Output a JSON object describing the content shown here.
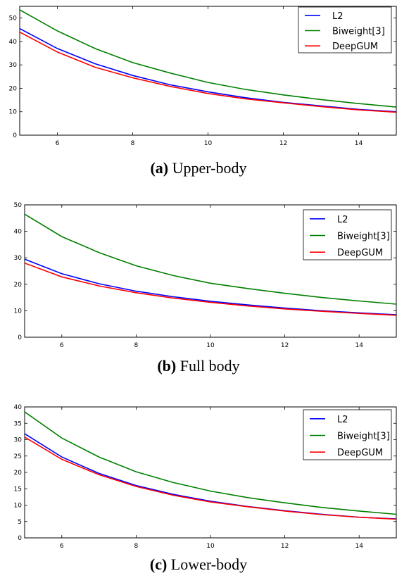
{
  "chart_data": [
    {
      "type": "line",
      "caption_label": "(a)",
      "caption_text": " Upper-body",
      "x": [
        5,
        6,
        7,
        8,
        9,
        10,
        11,
        12,
        13,
        14,
        15
      ],
      "xlim": [
        5,
        15
      ],
      "xticks": [
        6,
        8,
        10,
        12,
        14
      ],
      "ylim": [
        0,
        55
      ],
      "yticks": [
        0,
        10,
        20,
        30,
        40,
        50
      ],
      "legend_position": "top-right",
      "series": [
        {
          "name": "L2",
          "color": "#0000ff",
          "values": [
            45.5,
            37,
            30.5,
            25.5,
            21.5,
            18.5,
            16,
            14,
            12.5,
            11,
            10
          ]
        },
        {
          "name": "Biweight[3]",
          "color": "#008000",
          "values": [
            53.5,
            44.5,
            37,
            31,
            26.5,
            22.5,
            19.5,
            17.2,
            15.2,
            13.5,
            12
          ]
        },
        {
          "name": "DeepGUM",
          "color": "#ff0000",
          "values": [
            44,
            35.5,
            29,
            24.5,
            20.8,
            17.8,
            15.5,
            13.8,
            12.2,
            10.8,
            9.8
          ]
        }
      ]
    },
    {
      "type": "line",
      "caption_label": "(b)",
      "caption_text": " Full body",
      "x": [
        5,
        6,
        7,
        8,
        9,
        10,
        11,
        12,
        13,
        14,
        15
      ],
      "xlim": [
        5,
        15
      ],
      "xticks": [
        6,
        8,
        10,
        12,
        14
      ],
      "ylim": [
        0,
        50
      ],
      "yticks": [
        0,
        10,
        20,
        30,
        40,
        50
      ],
      "legend_position": "top-right",
      "series": [
        {
          "name": "L2",
          "color": "#0000ff",
          "values": [
            29.5,
            24,
            20.2,
            17.4,
            15.3,
            13.6,
            12.2,
            11,
            10,
            9.2,
            8.5
          ]
        },
        {
          "name": "Biweight[3]",
          "color": "#008000",
          "values": [
            46.5,
            38,
            32,
            27,
            23.3,
            20.4,
            18.4,
            16.6,
            15,
            13.7,
            12.5
          ]
        },
        {
          "name": "DeepGUM",
          "color": "#ff0000",
          "values": [
            28,
            22.8,
            19.4,
            16.8,
            14.8,
            13.2,
            11.8,
            10.7,
            9.8,
            9,
            8.3
          ]
        }
      ]
    },
    {
      "type": "line",
      "caption_label": "(c)",
      "caption_text": " Lower-body",
      "x": [
        5,
        6,
        7,
        8,
        9,
        10,
        11,
        12,
        13,
        14,
        15
      ],
      "xlim": [
        5,
        15
      ],
      "xticks": [
        6,
        8,
        10,
        12,
        14
      ],
      "ylim": [
        0,
        40
      ],
      "yticks": [
        0,
        5,
        10,
        15,
        20,
        25,
        30,
        35,
        40
      ],
      "legend_position": "top-right",
      "series": [
        {
          "name": "L2",
          "color": "#0000ff",
          "values": [
            31.8,
            24.7,
            19.7,
            16,
            13.3,
            11.2,
            9.6,
            8.3,
            7.2,
            6.3,
            5.8
          ]
        },
        {
          "name": "Biweight[3]",
          "color": "#008000",
          "values": [
            38.5,
            30.5,
            24.7,
            20.2,
            16.9,
            14.3,
            12.3,
            10.7,
            9.3,
            8.2,
            7.2
          ]
        },
        {
          "name": "DeepGUM",
          "color": "#ff0000",
          "values": [
            30.8,
            24,
            19.3,
            15.7,
            13,
            11,
            9.5,
            8.2,
            7.1,
            6.3,
            5.7
          ]
        }
      ]
    }
  ]
}
